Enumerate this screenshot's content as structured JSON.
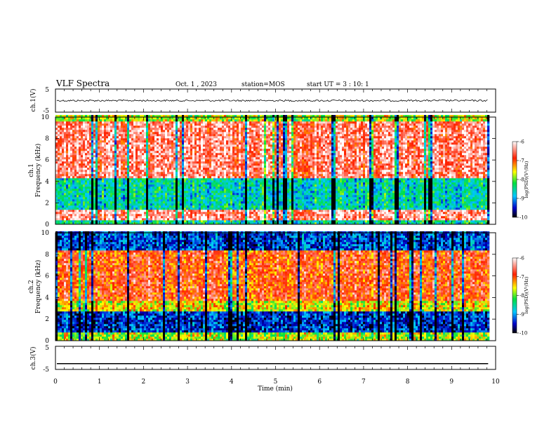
{
  "header": {
    "title": "VLF Spectra",
    "date": "Oct. 1 , 2023",
    "station": "station=MOS",
    "start": "start UT =  3 : 10: 1"
  },
  "chart_data": [
    {
      "type": "line",
      "name": "ch1-waveform",
      "ylabel": "ch.1(V)",
      "ylim": [
        -5,
        5
      ],
      "y_ticks": [
        "5",
        "-5"
      ],
      "x": [
        0,
        9.83
      ],
      "y": [
        0,
        0
      ],
      "note_level": "noisy trace near 0 V"
    },
    {
      "type": "heatmap",
      "name": "ch1-spectrogram",
      "title": "ch.1",
      "ylabel": "Frequency (kHz)",
      "ylim": [
        0,
        10
      ],
      "y_ticks": [
        "0",
        "2",
        "4",
        "6",
        "8",
        "10"
      ],
      "xlim": [
        0,
        9.83
      ],
      "colorbar": {
        "label": "log(PSD)(V²/Hz)",
        "range": [
          -10,
          -6
        ],
        "ticks": [
          "-6",
          "-7",
          "-8",
          "-9",
          "-10"
        ]
      },
      "bands": [
        {
          "range": [
            0,
            0.3
          ],
          "level": -8.5
        },
        {
          "range": [
            0.3,
            1.2
          ],
          "level": -6.4
        },
        {
          "range": [
            1.2,
            4.2
          ],
          "level": -8.6
        },
        {
          "range": [
            4.2,
            9.6
          ],
          "level": -6.5
        },
        {
          "range": [
            9.6,
            10
          ],
          "level": -7.8
        }
      ]
    },
    {
      "type": "heatmap",
      "name": "ch2-spectrogram",
      "title": "ch.2",
      "ylabel": "Frequency (kHz)",
      "ylim": [
        0,
        10
      ],
      "y_ticks": [
        "0",
        "2",
        "4",
        "6",
        "8",
        "10"
      ],
      "xlim": [
        0,
        9.83
      ],
      "colorbar": {
        "label": "log(PSD)(V²/Hz)",
        "range": [
          -10,
          -6
        ],
        "ticks": [
          "-6",
          "-7",
          "-8",
          "-9",
          "-10"
        ]
      },
      "bands": [
        {
          "range": [
            0,
            0.6
          ],
          "level": -7.8
        },
        {
          "range": [
            0.6,
            2.6
          ],
          "level": -9.4
        },
        {
          "range": [
            2.6,
            3.6
          ],
          "level": -7.6
        },
        {
          "range": [
            3.6,
            8.2
          ],
          "level": -6.9
        },
        {
          "range": [
            8.2,
            10
          ],
          "level": -9.3
        }
      ]
    },
    {
      "type": "line",
      "name": "ch3-waveform",
      "ylabel": "ch.3(V)",
      "ylim": [
        -5,
        5
      ],
      "y_ticks": [
        "5",
        "-5"
      ],
      "x": [
        0,
        9.83
      ],
      "y": [
        -2.5,
        -2.5
      ]
    }
  ],
  "x_axis": {
    "label": "Time (min)",
    "ticks": [
      "0",
      "1",
      "2",
      "3",
      "4",
      "5",
      "6",
      "7",
      "8",
      "9",
      "10"
    ],
    "xlim": [
      0,
      10
    ]
  }
}
